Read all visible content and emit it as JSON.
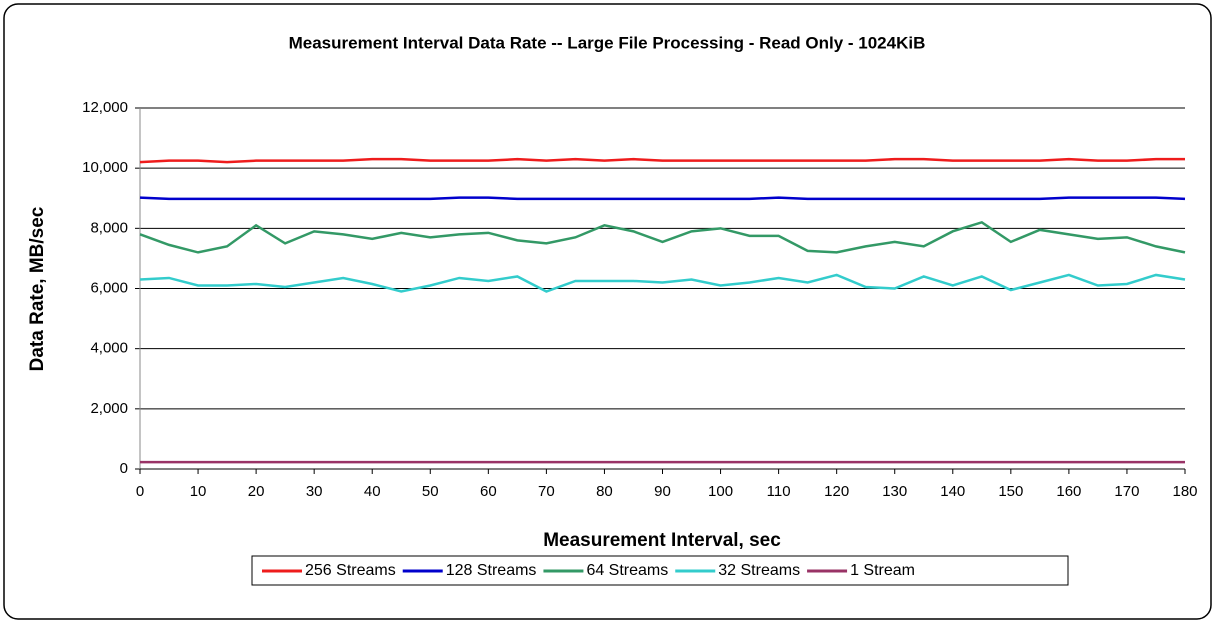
{
  "chart_data": {
    "type": "line",
    "title": "Measurement Interval Data Rate -- Large File Processing - Read Only - 1024KiB",
    "x_label": "Measurement Interval, sec",
    "y_label": "Data Rate, MB/sec",
    "x": [
      0,
      5,
      10,
      15,
      20,
      25,
      30,
      35,
      40,
      45,
      50,
      55,
      60,
      65,
      70,
      75,
      80,
      85,
      90,
      95,
      100,
      105,
      110,
      115,
      120,
      125,
      130,
      135,
      140,
      145,
      150,
      155,
      160,
      165,
      170,
      175,
      180
    ],
    "xlim": [
      0,
      180
    ],
    "xticks": [
      0,
      10,
      20,
      30,
      40,
      50,
      60,
      70,
      80,
      90,
      100,
      110,
      120,
      130,
      140,
      150,
      160,
      170,
      180
    ],
    "ylim": [
      0,
      12000
    ],
    "yticks": [
      0,
      {
        "value": 2000,
        "label": "2,000"
      },
      {
        "value": 4000,
        "label": "4,000"
      },
      {
        "value": 6000,
        "label": "6,000"
      },
      {
        "value": 8000,
        "label": "8,000"
      },
      {
        "value": 10000,
        "label": "10,000"
      },
      {
        "value": 12000,
        "label": "12,000"
      }
    ],
    "grid": true,
    "legend": "bottom",
    "series": [
      {
        "name": "256 Streams",
        "color": "#ee1c1c",
        "values": [
          10200,
          10250,
          10250,
          10200,
          10250,
          10250,
          10250,
          10250,
          10300,
          10300,
          10250,
          10250,
          10250,
          10300,
          10250,
          10300,
          10250,
          10300,
          10250,
          10250,
          10250,
          10250,
          10250,
          10250,
          10250,
          10250,
          10300,
          10300,
          10250,
          10250,
          10250,
          10250,
          10300,
          10250,
          10250,
          10300,
          10300
        ]
      },
      {
        "name": "128 Streams",
        "color": "#0000cc",
        "values": [
          9020,
          8980,
          8980,
          8980,
          8980,
          8980,
          8980,
          8980,
          8980,
          8980,
          8980,
          9020,
          9020,
          8980,
          8980,
          8980,
          8980,
          8980,
          8980,
          8980,
          8980,
          8980,
          9020,
          8980,
          8980,
          8980,
          8980,
          8980,
          8980,
          8980,
          8980,
          8980,
          9020,
          9020,
          9020,
          9020,
          8980
        ]
      },
      {
        "name": "64 Streams",
        "color": "#339966",
        "values": [
          7800,
          7450,
          7200,
          7400,
          8100,
          7500,
          7900,
          7800,
          7650,
          7850,
          7700,
          7800,
          7850,
          7600,
          7500,
          7700,
          8100,
          7900,
          7550,
          7900,
          8000,
          7750,
          7750,
          7250,
          7200,
          7400,
          7550,
          7400,
          7900,
          8200,
          7550,
          7950,
          7800,
          7650,
          7700,
          7400,
          7200
        ]
      },
      {
        "name": "32 Streams",
        "color": "#33cccc",
        "values": [
          6300,
          6350,
          6100,
          6100,
          6150,
          6050,
          6200,
          6350,
          6150,
          5900,
          6100,
          6350,
          6250,
          6400,
          5900,
          6250,
          6250,
          6250,
          6200,
          6300,
          6100,
          6200,
          6350,
          6200,
          6450,
          6050,
          6000,
          6400,
          6100,
          6400,
          5950,
          6200,
          6450,
          6100,
          6150,
          6450,
          6300
        ]
      },
      {
        "name": "1 Stream",
        "color": "#993366",
        "values": [
          230,
          230,
          230,
          230,
          230,
          230,
          230,
          230,
          230,
          230,
          230,
          230,
          230,
          230,
          230,
          230,
          230,
          230,
          230,
          230,
          230,
          230,
          230,
          230,
          230,
          230,
          230,
          230,
          230,
          230,
          230,
          230,
          230,
          230,
          230,
          230,
          230
        ]
      }
    ]
  }
}
